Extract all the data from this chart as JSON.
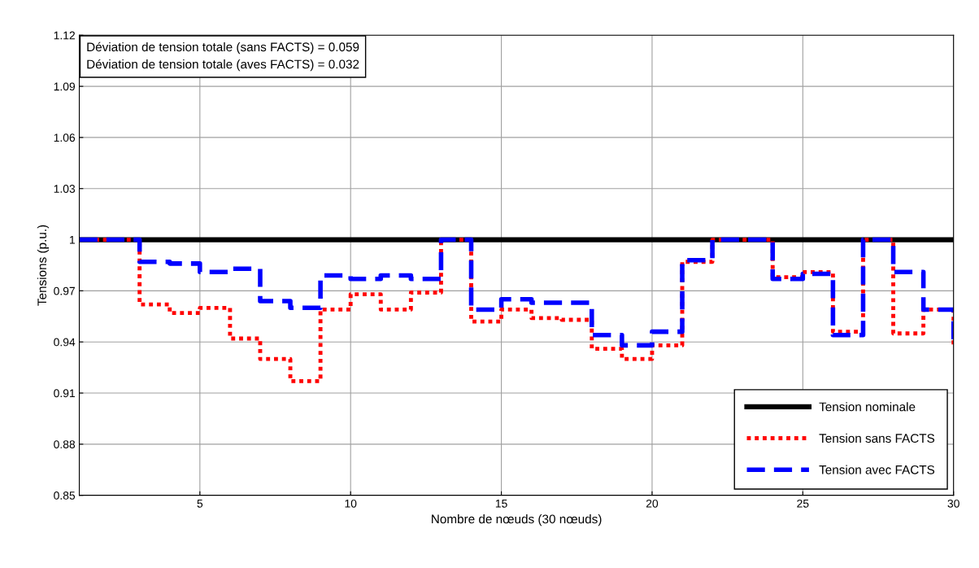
{
  "chart_data": {
    "type": "step",
    "xlabel": "Nombre de nœuds (30 nœuds)",
    "ylabel": "Tensions (p.u.)",
    "x": [
      1,
      2,
      3,
      4,
      5,
      6,
      7,
      8,
      9,
      10,
      11,
      12,
      13,
      14,
      15,
      16,
      17,
      18,
      19,
      20,
      21,
      22,
      23,
      24,
      25,
      26,
      27,
      28,
      29,
      30
    ],
    "series": [
      {
        "name": "Tension nominale",
        "type": "line",
        "color": "#000000",
        "line_style": "solid",
        "x": [
          1,
          30
        ],
        "values": [
          1.0,
          1.0
        ]
      },
      {
        "name": "Tension sans FACTS",
        "color": "#ff0000",
        "line_style": "dotted",
        "values": [
          1.0,
          1.0,
          0.962,
          0.957,
          0.96,
          0.942,
          0.93,
          0.917,
          0.959,
          0.968,
          0.959,
          0.969,
          1.0,
          0.952,
          0.959,
          0.954,
          0.953,
          0.936,
          0.93,
          0.938,
          0.987,
          1.0,
          1.0,
          0.978,
          0.981,
          0.946,
          1.0,
          0.945,
          0.959,
          0.937
        ]
      },
      {
        "name": "Tension avec FACTS",
        "color": "#0000ff",
        "line_style": "dashed",
        "values": [
          1.0,
          1.0,
          0.987,
          0.986,
          0.981,
          0.983,
          0.964,
          0.96,
          0.979,
          0.977,
          0.979,
          0.977,
          1.0,
          0.959,
          0.965,
          0.963,
          0.963,
          0.944,
          0.938,
          0.946,
          0.988,
          1.0,
          1.0,
          0.977,
          0.98,
          0.944,
          1.0,
          0.981,
          0.959,
          0.937
        ]
      }
    ],
    "xlim": [
      1,
      30
    ],
    "xticks": [
      5,
      10,
      15,
      20,
      25,
      30
    ],
    "ylim": [
      0.85,
      1.12
    ],
    "yticks": [
      0.85,
      0.88,
      0.91,
      0.94,
      0.97,
      {
        "value": 1.0,
        "label": "1"
      },
      1.03,
      1.06,
      1.09,
      1.12
    ],
    "grid": true,
    "legend": "bottom right",
    "annotations": [
      "Déviation de tension totale (sans FACTS) = 0.059",
      "Déviation de tension totale (aves FACTS) = 0.032"
    ]
  }
}
